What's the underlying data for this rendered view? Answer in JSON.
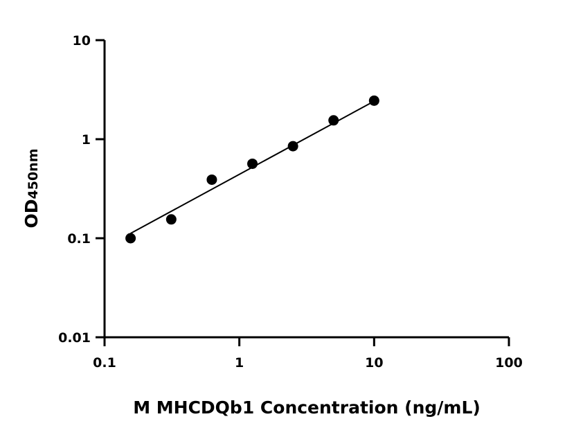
{
  "chart_data": {
    "type": "scatter",
    "x_scale": "log",
    "y_scale": "log",
    "xlim": [
      0.1,
      100
    ],
    "ylim": [
      0.01,
      10
    ],
    "x_ticks": [
      0.1,
      1,
      10,
      100
    ],
    "x_tick_labels": [
      "0.1",
      "1",
      "10",
      "100"
    ],
    "y_ticks": [
      0.01,
      0.1,
      1,
      10
    ],
    "y_tick_labels": [
      "0.01",
      "0.1",
      "1",
      "10"
    ],
    "xlabel": "M MHCDQb1 Concentration (ng/mL)",
    "ylabel_main": "OD",
    "ylabel_subscript": "450nm",
    "grid": false,
    "legend": "none",
    "points": [
      {
        "x": 0.156,
        "y": 0.1
      },
      {
        "x": 0.3125,
        "y": 0.155
      },
      {
        "x": 0.625,
        "y": 0.39
      },
      {
        "x": 1.25,
        "y": 0.565
      },
      {
        "x": 2.5,
        "y": 0.85
      },
      {
        "x": 5,
        "y": 1.55
      },
      {
        "x": 10,
        "y": 2.45
      }
    ],
    "fit_line": [
      {
        "x": 0.156,
        "y": 0.112
      },
      {
        "x": 10,
        "y": 2.42
      }
    ],
    "colors": {
      "points": "#000000",
      "line": "#000000",
      "axes": "#000000"
    }
  }
}
